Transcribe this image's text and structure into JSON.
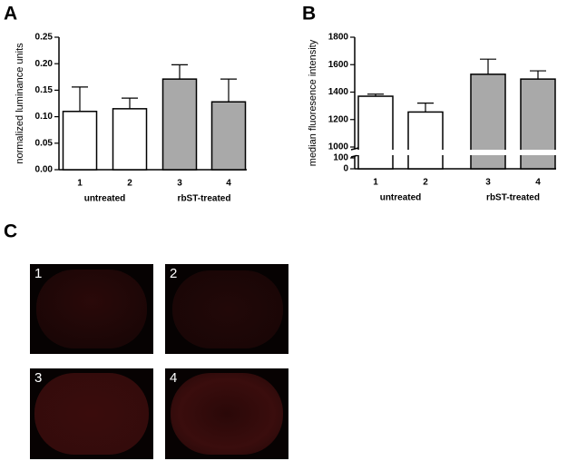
{
  "chart_data": [
    {
      "type": "bar",
      "panel": "A",
      "ylabel": "normalized luminance units",
      "categories": [
        "1",
        "2",
        "3",
        "4"
      ],
      "group_labels": [
        "untreated",
        "rbST-treated"
      ],
      "values": [
        0.11,
        0.115,
        0.171,
        0.128
      ],
      "errors": [
        0.046,
        0.02,
        0.027,
        0.043
      ],
      "colors": [
        "#ffffff",
        "#ffffff",
        "#a9a9a9",
        "#a9a9a9"
      ],
      "ylim": [
        0,
        0.25
      ],
      "yticks": [
        {
          "value": 0,
          "label": "0.00"
        },
        {
          "value": 0.05,
          "label": "0.05"
        },
        {
          "value": 0.1,
          "label": "0.10"
        },
        {
          "value": 0.15,
          "label": "0.15"
        },
        {
          "value": 0.2,
          "label": "0.20"
        },
        {
          "value": 0.25,
          "label": "0.25"
        }
      ]
    },
    {
      "type": "bar",
      "panel": "B",
      "ylabel": "median fluoresence intensity",
      "categories": [
        "1",
        "2",
        "3",
        "4"
      ],
      "group_labels": [
        "untreated",
        "rbST-treated"
      ],
      "values": [
        1370,
        1255,
        1530,
        1495
      ],
      "errors": [
        15,
        65,
        110,
        60
      ],
      "colors": [
        "#ffffff",
        "#ffffff",
        "#a9a9a9",
        "#a9a9a9"
      ],
      "ylim": [
        0,
        1800
      ],
      "ybreak": [
        100,
        1000
      ],
      "yticks": [
        0,
        100,
        1000,
        1200,
        1400,
        1600,
        1800
      ]
    }
  ],
  "panel_c": {
    "letter": "C",
    "images": [
      "1",
      "2",
      "3",
      "4"
    ]
  }
}
